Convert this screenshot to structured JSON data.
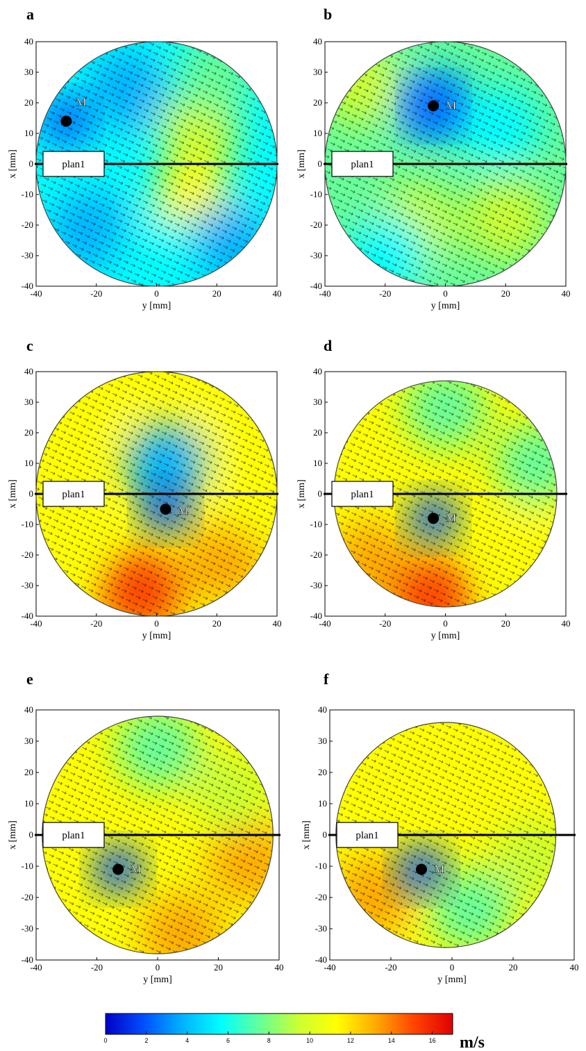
{
  "chart_data": [
    {
      "type": "heatmap",
      "panel_letter": "a",
      "xlabel": "y [mm]",
      "ylabel": "x [mm]",
      "xlim": [
        -40,
        40
      ],
      "ylim": [
        -40,
        40
      ],
      "xticks": [
        "-40",
        "-20",
        "0",
        "20",
        "40"
      ],
      "yticks": [
        "40",
        "30",
        "20",
        "10",
        "0",
        "-10",
        "-20",
        "-30",
        "-40"
      ],
      "plane_label": "plan1",
      "plane_x_mm": 0,
      "vortex_label": "M",
      "vortex_center": {
        "y_mm": -30,
        "x_mm": 14
      },
      "disk": {
        "center_y_mm": 0,
        "center_x_mm": 0,
        "radius_mm": 40
      },
      "velocity_field_ms": [
        {
          "y_mm": -10,
          "x_mm": 24,
          "speed": 3
        },
        {
          "y_mm": 14,
          "x_mm": 10,
          "speed": 10
        },
        {
          "y_mm": 12,
          "x_mm": -12,
          "speed": 11
        },
        {
          "y_mm": -22,
          "x_mm": -22,
          "speed": 3
        },
        {
          "y_mm": 24,
          "x_mm": -26,
          "speed": 3
        },
        {
          "y_mm": 0,
          "x_mm": -30,
          "speed": 6
        },
        {
          "y_mm": 20,
          "x_mm": 30,
          "speed": 8
        }
      ]
    },
    {
      "type": "heatmap",
      "panel_letter": "b",
      "xlabel": "y [mm]",
      "ylabel": "x [mm]",
      "xlim": [
        -40,
        40
      ],
      "ylim": [
        -40,
        40
      ],
      "xticks": [
        "-40",
        "-20",
        "0",
        "20",
        "40"
      ],
      "yticks": [
        "40",
        "30",
        "20",
        "10",
        "0",
        "-10",
        "-20",
        "-30",
        "-40"
      ],
      "plane_label": "plan1",
      "plane_x_mm": 0,
      "vortex_label": "M",
      "vortex_center": {
        "y_mm": -4,
        "x_mm": 19
      },
      "disk": {
        "center_y_mm": 0,
        "center_x_mm": 0,
        "radius_mm": 40
      },
      "velocity_field_ms": [
        {
          "y_mm": -4,
          "x_mm": 19,
          "speed": 3
        },
        {
          "y_mm": 18,
          "x_mm": 12,
          "speed": 5
        },
        {
          "y_mm": -10,
          "x_mm": -20,
          "speed": 10
        },
        {
          "y_mm": 20,
          "x_mm": -18,
          "speed": 10
        },
        {
          "y_mm": -28,
          "x_mm": 26,
          "speed": 10
        },
        {
          "y_mm": -20,
          "x_mm": -30,
          "speed": 6
        }
      ]
    },
    {
      "type": "heatmap",
      "panel_letter": "c",
      "xlabel": "y [mm]",
      "ylabel": "x [mm]",
      "xlim": [
        -40,
        40
      ],
      "ylim": [
        -40,
        40
      ],
      "xticks": [
        "-40",
        "-20",
        "0",
        "20",
        "40"
      ],
      "yticks": [
        "40",
        "30",
        "20",
        "10",
        "0",
        "-10",
        "-20",
        "-30",
        "-40"
      ],
      "plane_label": "plan1",
      "plane_x_mm": 0,
      "vortex_label": "M",
      "vortex_center": {
        "y_mm": 3,
        "x_mm": -5
      },
      "disk": {
        "center_y_mm": 0,
        "center_x_mm": 0,
        "radius_mm": 40
      },
      "velocity_field_ms": [
        {
          "y_mm": 3,
          "x_mm": 10,
          "speed": 4
        },
        {
          "y_mm": -20,
          "x_mm": 30,
          "speed": 11
        },
        {
          "y_mm": 25,
          "x_mm": 28,
          "speed": 11
        },
        {
          "y_mm": -5,
          "x_mm": -32,
          "speed": 16
        },
        {
          "y_mm": 22,
          "x_mm": -22,
          "speed": 14
        },
        {
          "y_mm": -30,
          "x_mm": -10,
          "speed": 12
        },
        {
          "y_mm": 32,
          "x_mm": 0,
          "speed": 11
        }
      ]
    },
    {
      "type": "heatmap",
      "panel_letter": "d",
      "xlabel": "y [mm]",
      "ylabel": "x [mm]",
      "xlim": [
        -40,
        40
      ],
      "ylim": [
        -40,
        40
      ],
      "xticks": [
        "-40",
        "-20",
        "0",
        "20",
        "40"
      ],
      "yticks": [
        "40",
        "30",
        "20",
        "10",
        "0",
        "-10",
        "-20",
        "-30",
        "-40"
      ],
      "plane_label": "plan1",
      "plane_x_mm": 0,
      "vortex_label": "M",
      "vortex_center": {
        "y_mm": -4,
        "x_mm": -8
      },
      "disk": {
        "center_y_mm": 0,
        "center_x_mm": 0,
        "radius_mm": 37
      },
      "velocity_field_ms": [
        {
          "y_mm": 0,
          "x_mm": 28,
          "speed": 8
        },
        {
          "y_mm": -25,
          "x_mm": -22,
          "speed": 13
        },
        {
          "y_mm": -5,
          "x_mm": -34,
          "speed": 15
        },
        {
          "y_mm": 26,
          "x_mm": -18,
          "speed": 11
        },
        {
          "y_mm": 30,
          "x_mm": 10,
          "speed": 8
        }
      ]
    },
    {
      "type": "heatmap",
      "panel_letter": "e",
      "xlabel": "y [mm]",
      "ylabel": "x [mm]",
      "xlim": [
        -40,
        40
      ],
      "ylim": [
        -40,
        40
      ],
      "xticks": [
        "-40",
        "-20",
        "0",
        "20",
        "40"
      ],
      "yticks": [
        "40",
        "30",
        "20",
        "10",
        "0",
        "-10",
        "-20",
        "-30",
        "-40"
      ],
      "plane_label": "plan1",
      "plane_x_mm": 0,
      "vortex_label": "M",
      "vortex_center": {
        "y_mm": -13,
        "x_mm": -11
      },
      "disk": {
        "center_y_mm": 0,
        "center_x_mm": 0,
        "radius_mm": 38
      },
      "velocity_field_ms": [
        {
          "y_mm": 0,
          "x_mm": 28,
          "speed": 8
        },
        {
          "y_mm": 30,
          "x_mm": -8,
          "speed": 13
        },
        {
          "y_mm": 8,
          "x_mm": -32,
          "speed": 14
        },
        {
          "y_mm": -30,
          "x_mm": -20,
          "speed": 11
        },
        {
          "y_mm": 24,
          "x_mm": 14,
          "speed": 9
        }
      ]
    },
    {
      "type": "heatmap",
      "panel_letter": "f",
      "xlabel": "y [mm]",
      "ylabel": "x [mm]",
      "xlim": [
        -40,
        40
      ],
      "ylim": [
        -40,
        40
      ],
      "xticks": [
        "-40",
        "-20",
        "0",
        "20",
        "40"
      ],
      "yticks": [
        "40",
        "30",
        "20",
        "10",
        "0",
        "-10",
        "-20",
        "-30",
        "-40"
      ],
      "plane_label": "plan1",
      "plane_x_mm": 0,
      "vortex_label": "M",
      "vortex_center": {
        "y_mm": -10,
        "x_mm": -11
      },
      "disk": {
        "center_y_mm": -2,
        "center_x_mm": 0,
        "radius_mm": 36
      },
      "velocity_field_ms": [
        {
          "y_mm": 0,
          "x_mm": 26,
          "speed": 11
        },
        {
          "y_mm": -26,
          "x_mm": -20,
          "speed": 13
        },
        {
          "y_mm": 26,
          "x_mm": -8,
          "speed": 10
        },
        {
          "y_mm": 6,
          "x_mm": -24,
          "speed": 7
        },
        {
          "y_mm": 18,
          "x_mm": 24,
          "speed": 11
        }
      ]
    }
  ],
  "colorbar": {
    "unit_label": "m/s",
    "range": [
      0,
      17
    ],
    "ticks": [
      "0",
      "2",
      "4",
      "6",
      "8",
      "10",
      "12",
      "14",
      "16"
    ],
    "colormap": [
      "#0000c8",
      "#0050ff",
      "#00b4ff",
      "#00ffff",
      "#66ff99",
      "#ccff33",
      "#ffff00",
      "#ffaa00",
      "#ff4400",
      "#e00000"
    ]
  }
}
